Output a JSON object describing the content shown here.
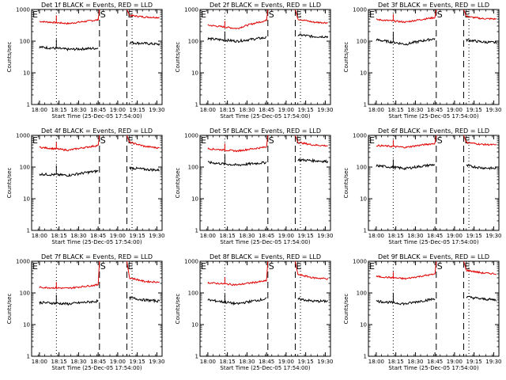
{
  "figure": {
    "panels": [
      {
        "title": "Det 1f BLACK = Events, RED = LLD",
        "xlabel": "Start Time (25-Dec-05 17:54:00)",
        "ylabel": "Counts/sec"
      },
      {
        "title": "Det 2f BLACK = Events, RED = LLD",
        "xlabel": "Start Time (25-Dec-05 17:54:00)",
        "ylabel": "Counts/sec"
      },
      {
        "title": "Det 3f BLACK = Events, RED = LLD",
        "xlabel": "Start Time (25-Dec-05 17:54:00)",
        "ylabel": "Counts/sec"
      },
      {
        "title": "Det 4f BLACK = Events, RED = LLD",
        "xlabel": "Start Time (25-Dec-05 17:54:00)",
        "ylabel": "Counts/sec"
      },
      {
        "title": "Det 5f BLACK = Events, RED = LLD",
        "xlabel": "Start Time (25-Dec-05 17:54:00)",
        "ylabel": "Counts/sec"
      },
      {
        "title": "Det 6f BLACK = Events, RED = LLD",
        "xlabel": "Start Time (25-Dec-05 17:54:00)",
        "ylabel": "Counts/sec"
      },
      {
        "title": "Det 7f BLACK = Events, RED = LLD",
        "xlabel": "Start Time (25-Dec-05 17:54:00)",
        "ylabel": "Counts/sec"
      },
      {
        "title": "Det 8f BLACK = Events, RED = LLD",
        "xlabel": "Start Time (25-Dec-05 17:54:00)",
        "ylabel": "Counts/sec"
      },
      {
        "title": "Det 9f BLACK = Events, RED = LLD",
        "xlabel": "Start Time (25-Dec-05 17:54:00)",
        "ylabel": "Counts/sec"
      }
    ],
    "colors": {
      "events": "#000000",
      "lld": "#e00000",
      "background": "#ffffff"
    }
  },
  "chart_data": {
    "type": "line",
    "layout": "3x3 grid",
    "x_tick_labels": [
      "18:00",
      "18:15",
      "18:30",
      "18:45",
      "19:00",
      "19:15",
      "19:30"
    ],
    "xlim": [
      "17:54",
      "19:34"
    ],
    "y_scale": "log",
    "ylim": [
      1,
      1000
    ],
    "y_tick_labels": [
      "1",
      "10",
      "100",
      "1000"
    ],
    "markers": [
      {
        "label": "E",
        "time": "17:54",
        "style": "dashed"
      },
      {
        "label": "S",
        "time": "18:46",
        "style": "dashed"
      },
      {
        "label": "E",
        "time": "19:07",
        "style": "dashed"
      },
      {
        "time": "18:13",
        "style": "dotted"
      },
      {
        "time": "19:11",
        "style": "dotted"
      }
    ],
    "series_by_panel": [
      {
        "events": {
          "before": [
            65,
            55,
            60
          ],
          "after": [
            90,
            85,
            80
          ]
        },
        "lld": {
          "before": [
            420,
            360,
            470
          ],
          "after": [
            650,
            580,
            560
          ]
        }
      },
      {
        "events": {
          "before": [
            120,
            100,
            130
          ],
          "after": [
            160,
            140,
            140
          ]
        },
        "lld": {
          "before": [
            320,
            250,
            450
          ],
          "after": [
            500,
            400,
            380
          ]
        }
      },
      {
        "events": {
          "before": [
            110,
            80,
            120
          ],
          "after": [
            110,
            95,
            90
          ]
        },
        "lld": {
          "before": [
            480,
            400,
            560
          ],
          "after": [
            600,
            520,
            500
          ]
        }
      },
      {
        "events": {
          "before": [
            60,
            55,
            75
          ],
          "after": [
            95,
            85,
            80
          ]
        },
        "lld": {
          "before": [
            420,
            340,
            480
          ],
          "after": [
            600,
            450,
            400
          ]
        }
      },
      {
        "events": {
          "before": [
            140,
            115,
            140
          ],
          "after": [
            170,
            160,
            150
          ]
        },
        "lld": {
          "before": [
            380,
            320,
            430
          ],
          "after": [
            600,
            500,
            470
          ]
        }
      },
      {
        "events": {
          "before": [
            110,
            90,
            120
          ],
          "after": [
            110,
            95,
            90
          ]
        },
        "lld": {
          "before": [
            480,
            420,
            560
          ],
          "after": [
            600,
            520,
            500
          ]
        }
      },
      {
        "events": {
          "before": [
            50,
            45,
            55
          ],
          "after": [
            70,
            60,
            55
          ]
        },
        "lld": {
          "before": [
            150,
            140,
            180
          ],
          "after": [
            300,
            230,
            220
          ]
        }
      },
      {
        "events": {
          "before": [
            60,
            45,
            65
          ],
          "after": [
            65,
            55,
            55
          ]
        },
        "lld": {
          "before": [
            210,
            180,
            240
          ],
          "after": [
            380,
            300,
            280
          ]
        }
      },
      {
        "events": {
          "before": [
            55,
            45,
            65
          ],
          "after": [
            75,
            65,
            60
          ]
        },
        "lld": {
          "before": [
            330,
            280,
            390
          ],
          "after": [
            520,
            430,
            400
          ]
        }
      }
    ]
  }
}
